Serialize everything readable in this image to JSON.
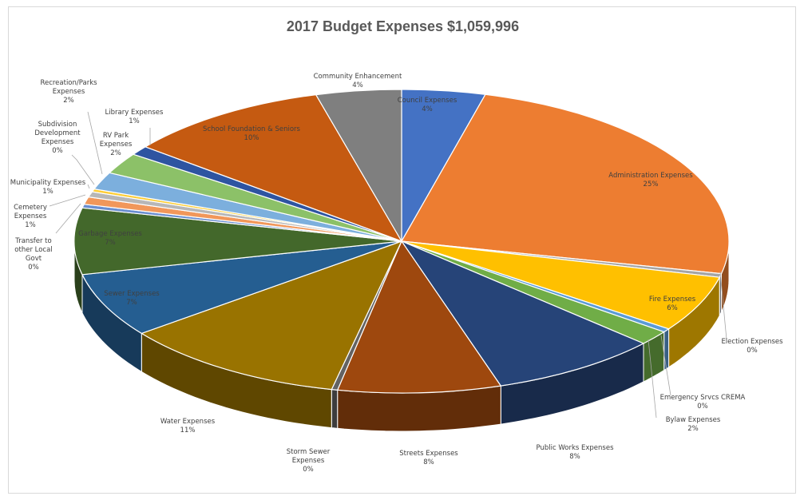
{
  "chart_data": {
    "type": "pie",
    "title": "2017 Budget Expenses $1,059,996",
    "slices": [
      {
        "name": "Council Expenses",
        "pct_label": "4%",
        "value": 4.2,
        "color": "#4472c4"
      },
      {
        "name": "Administration Expenses",
        "pct_label": "25%",
        "value": 24.8,
        "color": "#ed7d31"
      },
      {
        "name": "Election Expenses",
        "pct_label": "0%",
        "value": 0.4,
        "color": "#a5a5a5"
      },
      {
        "name": "Fire Expenses",
        "pct_label": "6%",
        "value": 6.1,
        "color": "#ffc000"
      },
      {
        "name": "Emergency Srvcs CREMA",
        "pct_label": "0%",
        "value": 0.4,
        "color": "#5b9bd5"
      },
      {
        "name": "Bylaw Expenses",
        "pct_label": "2%",
        "value": 1.6,
        "color": "#70ad47"
      },
      {
        "name": "Public Works Expenses",
        "pct_label": "8%",
        "value": 8.5,
        "color": "#264478"
      },
      {
        "name": "Streets Expenses",
        "pct_label": "8%",
        "value": 8.2,
        "color": "#9e480e"
      },
      {
        "name": "Storm Sewer Expenses",
        "pct_label": "0%",
        "value": 0.3,
        "color": "#636363"
      },
      {
        "name": "Water Expenses",
        "pct_label": "11%",
        "value": 11.4,
        "color": "#997300"
      },
      {
        "name": "Sewer Expenses",
        "pct_label": "7%",
        "value": 7.0,
        "color": "#255e91"
      },
      {
        "name": "Garbage Expenses",
        "pct_label": "7%",
        "value": 7.2,
        "color": "#43682b"
      },
      {
        "name": "Transfer to other Local Govt",
        "pct_label": "0%",
        "value": 0.4,
        "color": "#698ed0"
      },
      {
        "name": "Cemetery Expenses",
        "pct_label": "1%",
        "value": 0.8,
        "color": "#f1975a"
      },
      {
        "name": "Municipality Expenses",
        "pct_label": "1%",
        "value": 0.6,
        "color": "#b7b7b7"
      },
      {
        "name": "Subdivision Development Expenses",
        "pct_label": "0%",
        "value": 0.3,
        "color": "#ffcd33"
      },
      {
        "name": "Recreation/Parks Expenses",
        "pct_label": "2%",
        "value": 1.9,
        "color": "#7cafdd"
      },
      {
        "name": "RV Park Expenses",
        "pct_label": "2%",
        "value": 2.3,
        "color": "#8cc168"
      },
      {
        "name": "Library Expenses",
        "pct_label": "1%",
        "value": 1.0,
        "color": "#2e54a1"
      },
      {
        "name": "School Foundation & Seniors",
        "pct_label": "10%",
        "value": 10.3,
        "color": "#c55a11"
      },
      {
        "name": "Community Enhancement",
        "pct_label": "4%",
        "value": 4.3,
        "color": "#7f7f7f"
      }
    ]
  }
}
